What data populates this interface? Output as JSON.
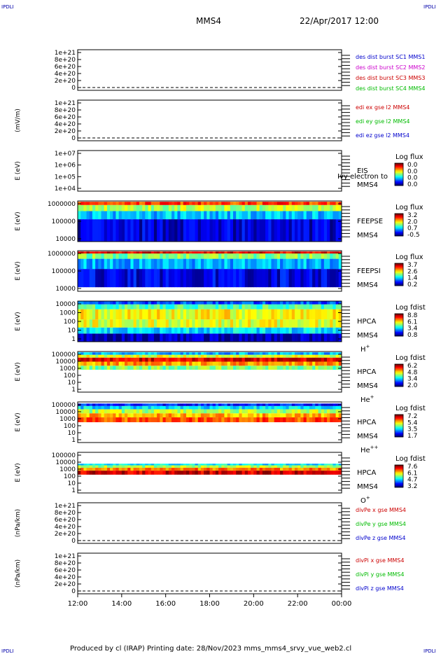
{
  "corner_label": "IPDLI",
  "header": {
    "spacecraft": "MMS4",
    "datetime": "22/Apr/2017 12:00"
  },
  "footer": {
    "text": "Produced by cl (IRAP)   Printing date: 28/Nov/2023   mms_mms4_srvy_vue_web2.cl"
  },
  "chart_data": {
    "type": "heatmap",
    "x_ticks": [
      "12:00",
      "14:00",
      "16:00",
      "18:00",
      "20:00",
      "22:00",
      "00:00"
    ],
    "panels": [
      {
        "id": "des-dist",
        "kind": "line",
        "ylabel": "",
        "yticks": [
          "1e+21",
          "8e+20",
          "6e+20",
          "4e+20",
          "2e+20",
          "0"
        ],
        "legend": [
          {
            "text": "des dist burst SC1 MMS1",
            "color": "#0000cc"
          },
          {
            "text": "des dist burst SC2 MMS2",
            "color": "#cc00cc"
          },
          {
            "text": "des dist burst SC3 MMS3",
            "color": "#cc0000"
          },
          {
            "text": "des dist burst SC4 MMS4",
            "color": "#00bb00"
          }
        ]
      },
      {
        "id": "edi-e",
        "kind": "line",
        "ylabel": "(mV/m)",
        "yticks": [
          "1e+21",
          "8e+20",
          "6e+20",
          "4e+20",
          "2e+20",
          "0"
        ],
        "legend": [
          {
            "text": "edi ex gse l2 MMS4",
            "color": "#cc0000"
          },
          {
            "text": "edi ey gse l2 MMS4",
            "color": "#00bb00"
          },
          {
            "text": "edi ez gse l2 MMS4",
            "color": "#0000cc"
          }
        ]
      },
      {
        "id": "eis",
        "kind": "spectrogram",
        "ylabel": "E (eV)",
        "yticks": [
          "1e+07",
          "1e+06",
          "1e+05",
          "1e+04"
        ],
        "side": [
          "EIS",
          "MMS4"
        ],
        "overlay": "Ivy electron to",
        "species": "",
        "cbar": {
          "title": "Log flux",
          "ticks": [
            "0.0",
            "0.0",
            "0.0",
            "0.0"
          ]
        }
      },
      {
        "id": "feepse",
        "kind": "spectrogram",
        "ylabel": "E (eV)",
        "yticks": [
          "1000000",
          "100000",
          "10000"
        ],
        "side": [
          "FEEPSE",
          "MMS4"
        ],
        "species": "",
        "cbar": {
          "title": "Log flux",
          "ticks": [
            "3.2",
            "2.0",
            "0.7",
            "-0.5"
          ]
        }
      },
      {
        "id": "feepsi",
        "kind": "spectrogram",
        "ylabel": "E (eV)",
        "yticks": [
          "1000000",
          "100000",
          "10000"
        ],
        "side": [
          "FEEPSI",
          "MMS4"
        ],
        "species": "",
        "cbar": {
          "title": "Log flux",
          "ticks": [
            "3.7",
            "2.6",
            "1.4",
            "0.2"
          ]
        }
      },
      {
        "id": "hpca-h",
        "kind": "spectrogram",
        "ylabel": "E (eV)",
        "yticks": [
          "10000",
          "1000",
          "100",
          "10",
          "1"
        ],
        "side": [
          "HPCA",
          "MMS4"
        ],
        "species": "H",
        "charge": "+",
        "cbar": {
          "title": "Log fdist",
          "ticks": [
            "8.8",
            "6.1",
            "3.4",
            "0.8"
          ]
        }
      },
      {
        "id": "hpca-he",
        "kind": "spectrogram",
        "ylabel": "E (eV)",
        "yticks": [
          "100000",
          "10000",
          "1000",
          "100",
          "10",
          "1"
        ],
        "side": [
          "HPCA",
          "MMS4"
        ],
        "species": "He",
        "charge": "+",
        "cbar": {
          "title": "Log fdist",
          "ticks": [
            "6.2",
            "4.8",
            "3.4",
            "2.0"
          ]
        }
      },
      {
        "id": "hpca-he2",
        "kind": "spectrogram",
        "ylabel": "E (eV)",
        "yticks": [
          "100000",
          "10000",
          "1000",
          "100",
          "10",
          "1"
        ],
        "side": [
          "HPCA",
          "MMS4"
        ],
        "species": "He",
        "charge": "++",
        "cbar": {
          "title": "Log fdist",
          "ticks": [
            "7.2",
            "5.4",
            "3.5",
            "1.7"
          ]
        }
      },
      {
        "id": "hpca-o",
        "kind": "spectrogram",
        "ylabel": "E (eV)",
        "yticks": [
          "100000",
          "10000",
          "1000",
          "100",
          "10",
          "1"
        ],
        "side": [
          "HPCA",
          "MMS4"
        ],
        "species": "O",
        "charge": "+",
        "cbar": {
          "title": "Log fdist",
          "ticks": [
            "7.6",
            "6.1",
            "4.7",
            "3.2"
          ]
        }
      },
      {
        "id": "divpe",
        "kind": "line",
        "ylabel": "(nPa/km)",
        "yticks": [
          "1e+21",
          "8e+20",
          "6e+20",
          "4e+20",
          "2e+20",
          "0"
        ],
        "legend": [
          {
            "text": "divPe x gse MMS4",
            "color": "#cc0000"
          },
          {
            "text": "divPe y gse MMS4",
            "color": "#00bb00"
          },
          {
            "text": "divPe z gse MMS4",
            "color": "#0000cc"
          }
        ]
      },
      {
        "id": "divpi",
        "kind": "line",
        "ylabel": "(nPa/km)",
        "yticks": [
          "1e+21",
          "8e+20",
          "6e+20",
          "4e+20",
          "2e+20",
          "0"
        ],
        "legend": [
          {
            "text": "divPi x gse MMS4",
            "color": "#cc0000"
          },
          {
            "text": "divPi y gse MMS4",
            "color": "#00bb00"
          },
          {
            "text": "divPi z gse MMS4",
            "color": "#0000cc"
          }
        ]
      }
    ]
  }
}
